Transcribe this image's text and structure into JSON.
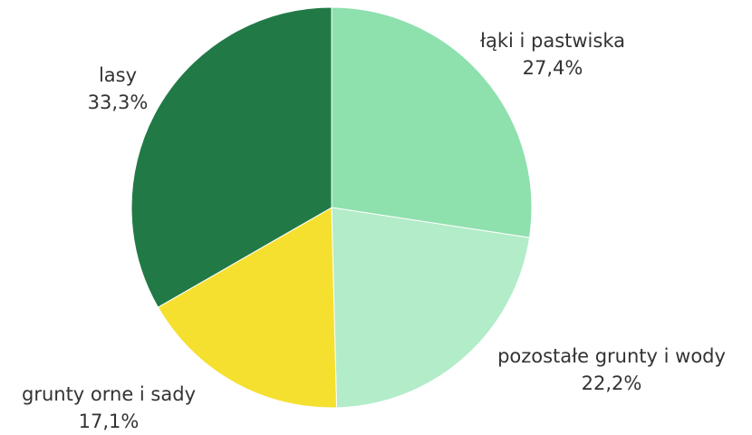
{
  "chart_data": {
    "type": "pie",
    "start_angle_deg": 0,
    "direction": "clockwise",
    "slices": [
      {
        "label": "łąki i pastwiska",
        "value": 27.4,
        "value_label": "27,4%",
        "color": "#8ee0ad"
      },
      {
        "label": "pozostałe grunty i wody",
        "value": 22.2,
        "value_label": "22,2%",
        "color": "#b2ecc8"
      },
      {
        "label": "grunty orne i sady",
        "value": 17.1,
        "value_label": "17,1%",
        "color": "#f5e030"
      },
      {
        "label": "lasy",
        "value": 33.3,
        "value_label": "33,3%",
        "color": "#217a46"
      }
    ]
  }
}
